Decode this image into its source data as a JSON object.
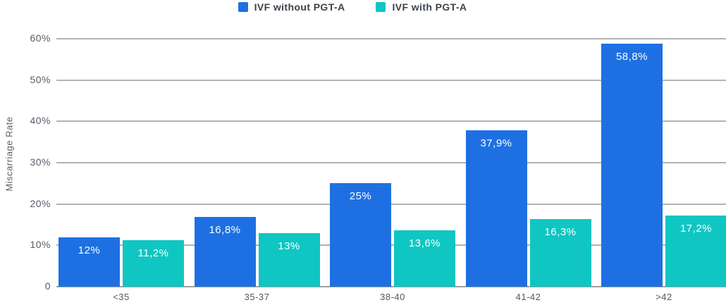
{
  "chart_data": {
    "type": "bar",
    "title": "",
    "xlabel": "",
    "ylabel": "Miscarriage Rate",
    "categories": [
      "<35",
      "35-37",
      "38-40",
      "41-42",
      ">42"
    ],
    "series": [
      {
        "name": "IVF without PGT-A",
        "color": "#1e70e2",
        "values": [
          12,
          16.8,
          25,
          37.9,
          58.8
        ],
        "value_labels": [
          "12%",
          "16,8%",
          "25%",
          "37,9%",
          "58,8%"
        ]
      },
      {
        "name": "IVF with PGT-A",
        "color": "#0fc6c2",
        "values": [
          11.2,
          13,
          13.6,
          16.3,
          17.2
        ],
        "value_labels": [
          "11,2%",
          "13%",
          "13,6%",
          "16,3%",
          "17,2%"
        ]
      }
    ],
    "y_ticks": [
      "60%",
      "50%",
      "40%",
      "30%",
      "20%",
      "10%",
      "0"
    ],
    "ylim": [
      0,
      60
    ],
    "grid": true,
    "legend_position": "top-center",
    "colors": {
      "gridline": "#b2b2b2",
      "axis_line": "#a2a2a2",
      "tick_text": "#565d66",
      "legend_text": "#3b434b",
      "bar_label_text": "#ffffff",
      "background": "#ffffff"
    }
  }
}
